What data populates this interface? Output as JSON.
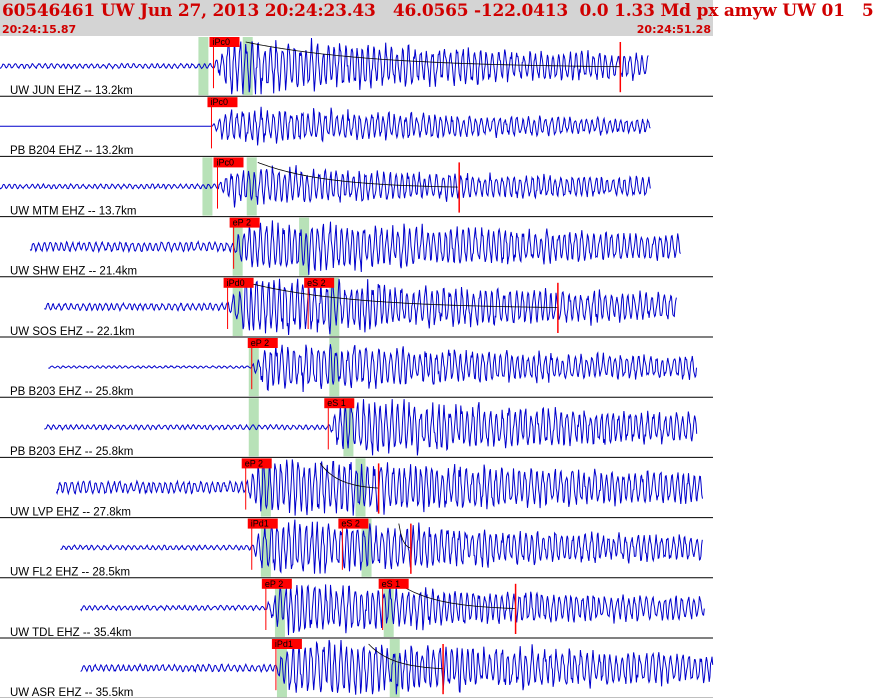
{
  "header": {
    "title": "60546461 UW Jun 27, 2013 20:24:23.43   46.0565 -122.0413  0.0 1.33 Md px amyw UW 01   5",
    "start_time": "20:24:15.87",
    "end_time": "20:24:51.28"
  },
  "colors": {
    "trace": "#0000cc",
    "pick_box": "#ff0000",
    "pick_line": "#ff0000",
    "window": "#b8e2b8",
    "coda": "#000000",
    "divider": "#000000",
    "header_bg": "#d4d4d4",
    "header_text": "#d00000"
  },
  "chart_data": {
    "type": "seismogram",
    "time_window": [
      "20:24:15.87",
      "20:24:51.28"
    ],
    "traces": [
      {
        "station": "UW JUN EHZ -- 13.2km",
        "picks": [
          {
            "label": "iPc0",
            "t": 10.6
          }
        ],
        "windows": [
          10.1,
          12.3
        ],
        "coda": {
          "start": 12.2,
          "end": 30.8
        },
        "signal_start": 0.0,
        "signal_end": 32.2,
        "noise_amp": 2,
        "peak_amp": 24
      },
      {
        "station": "PB B204 EHZ -- 13.2km",
        "picks": [
          {
            "label": "iPc0",
            "t": 10.5
          }
        ],
        "windows": [],
        "coda": null,
        "signal_start": 0.0,
        "signal_end": 32.3,
        "noise_amp": 0,
        "peak_amp": 16
      },
      {
        "station": "UW MTM EHZ -- 13.7km",
        "picks": [
          {
            "label": "iPc0",
            "t": 10.8
          }
        ],
        "windows": [
          10.3,
          12.5
        ],
        "coda": {
          "start": 12.8,
          "end": 22.8
        },
        "signal_start": 0.0,
        "signal_end": 32.3,
        "noise_amp": 2,
        "peak_amp": 17
      },
      {
        "station": "UW SHW EHZ -- 21.4km",
        "picks": [
          {
            "label": "eP 2",
            "t": 11.6
          }
        ],
        "windows": [
          11.8,
          15.1
        ],
        "coda": null,
        "signal_start": 1.5,
        "signal_end": 33.8,
        "noise_amp": 4,
        "peak_amp": 23
      },
      {
        "station": "UW SOS EHZ -- 22.1km",
        "picks": [
          {
            "label": "iPd0",
            "t": 11.3
          },
          {
            "label": "eS 2",
            "t": 15.3
          }
        ],
        "windows": [
          11.8,
          16.6
        ],
        "coda": {
          "start": 12.3,
          "end": 27.7
        },
        "signal_start": 2.2,
        "signal_end": 33.6,
        "noise_amp": 3,
        "peak_amp": 26
      },
      {
        "station": "PB B203 EHZ -- 25.8km",
        "picks": [
          {
            "label": "eP 2",
            "t": 12.5
          }
        ],
        "windows": [
          12.6,
          16.6
        ],
        "coda": null,
        "signal_start": 2.4,
        "signal_end": 34.6,
        "noise_amp": 1,
        "peak_amp": 22
      },
      {
        "station": "PB B203 EHZ -- 25.8km",
        "picks": [
          {
            "label": "eS 1",
            "t": 16.3
          }
        ],
        "windows": [
          12.6,
          17.3
        ],
        "coda": null,
        "signal_start": 2.2,
        "signal_end": 34.6,
        "noise_amp": 2,
        "peak_amp": 24
      },
      {
        "station": "UW LVP EHZ -- 27.8km",
        "picks": [
          {
            "label": "eP 2",
            "t": 12.2
          }
        ],
        "windows": [
          13.2,
          17.9
        ],
        "coda": {
          "start": 15.9,
          "end": 18.8
        },
        "signal_start": 2.8,
        "signal_end": 34.9,
        "noise_amp": 5,
        "peak_amp": 26
      },
      {
        "station": "UW FL2 EHZ -- 28.5km",
        "picks": [
          {
            "label": "iPd1",
            "t": 12.5
          },
          {
            "label": "eS 2",
            "t": 17.0
          }
        ],
        "windows": [
          13.2,
          18.2
        ],
        "coda": {
          "start": 19.8,
          "end": 20.4
        },
        "signal_start": 3.0,
        "signal_end": 34.9,
        "noise_amp": 2,
        "peak_amp": 24
      },
      {
        "station": "UW TDL EHZ -- 35.4km",
        "picks": [
          {
            "label": "eP 2",
            "t": 13.2
          },
          {
            "label": "eS 1",
            "t": 19.0
          }
        ],
        "windows": [
          13.9,
          19.3
        ],
        "coda": {
          "start": 19.8,
          "end": 25.6
        },
        "signal_start": 4.0,
        "signal_end": 35.0,
        "noise_amp": 2,
        "peak_amp": 22
      },
      {
        "station": "UW ASR EHZ -- 35.5km",
        "picks": [
          {
            "label": "iPd1",
            "t": 13.7
          }
        ],
        "windows": [
          14.0,
          19.6
        ],
        "coda": {
          "start": 18.3,
          "end": 22.0
        },
        "signal_start": 4.0,
        "signal_end": 35.4,
        "noise_amp": 3,
        "peak_amp": 26
      }
    ]
  }
}
